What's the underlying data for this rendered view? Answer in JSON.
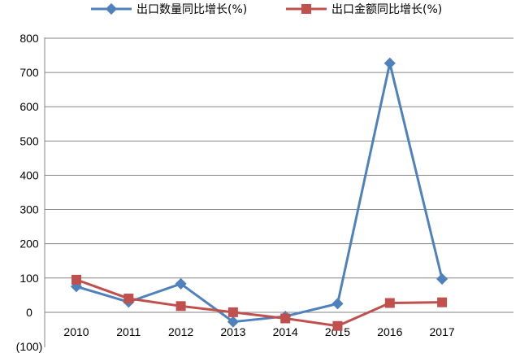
{
  "chart_data": {
    "type": "line",
    "categories": [
      "2010",
      "2011",
      "2012",
      "2013",
      "2014",
      "2015",
      "2016",
      "2017"
    ],
    "series": [
      {
        "name": "出口数量同比增长(%)",
        "values": [
          75,
          30,
          83,
          -28,
          -12,
          25,
          727,
          97
        ],
        "color": "#4F81BD",
        "marker": "diamond"
      },
      {
        "name": "出口金额同比增长(%)",
        "values": [
          95,
          40,
          18,
          0,
          -18,
          -40,
          27,
          29
        ],
        "color": "#C0504D",
        "marker": "square"
      }
    ],
    "yticks": [
      800,
      700,
      600,
      500,
      400,
      300,
      200,
      100,
      0,
      -100
    ],
    "ytick_labels": [
      "800",
      "700",
      "600",
      "500",
      "400",
      "300",
      "200",
      "100",
      "0",
      "(100)"
    ],
    "ylim": [
      -100,
      800
    ],
    "grid": true,
    "legend": "top"
  }
}
